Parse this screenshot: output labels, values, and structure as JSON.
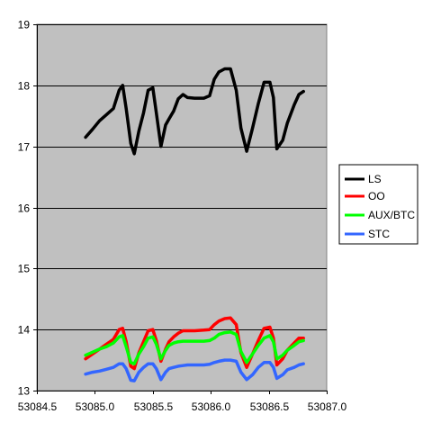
{
  "chart_data": {
    "type": "line",
    "title": "",
    "xlabel": "",
    "ylabel": "",
    "xlim": [
      53084.5,
      53087.0
    ],
    "ylim": [
      13,
      19
    ],
    "xticks": [
      53084.5,
      53085.0,
      53085.5,
      53086.0,
      53086.5,
      53087.0
    ],
    "xtick_labels": [
      "53084.5",
      "53085.0",
      "53085.5",
      "53086.0",
      "53086.5",
      "53087.0"
    ],
    "yticks": [
      13,
      14,
      15,
      16,
      17,
      18,
      19
    ],
    "ytick_labels": [
      "13",
      "14",
      "15",
      "16",
      "17",
      "18",
      "19"
    ],
    "grid": "horizontal",
    "plot_background": "#c0c0c0",
    "legend_position": "right",
    "series": [
      {
        "name": "LS",
        "color": "#000000",
        "x": [
          53084.92,
          53084.98,
          53085.04,
          53085.1,
          53085.16,
          53085.21,
          53085.24,
          53085.27,
          53085.31,
          53085.34,
          53085.38,
          53085.42,
          53085.46,
          53085.5,
          53085.53,
          53085.57,
          53085.61,
          53085.64,
          53085.68,
          53085.72,
          53085.76,
          53085.8,
          53085.86,
          53085.94,
          53085.99,
          53086.03,
          53086.07,
          53086.12,
          53086.17,
          53086.22,
          53086.26,
          53086.31,
          53086.36,
          53086.41,
          53086.46,
          53086.51,
          53086.54,
          53086.57,
          53086.62,
          53086.66,
          53086.72,
          53086.76,
          53086.8
        ],
        "values": [
          17.15,
          17.28,
          17.42,
          17.52,
          17.62,
          17.92,
          18.0,
          17.62,
          17.05,
          16.88,
          17.25,
          17.55,
          17.92,
          17.96,
          17.55,
          17.0,
          17.35,
          17.45,
          17.58,
          17.78,
          17.85,
          17.8,
          17.79,
          17.79,
          17.83,
          18.1,
          18.22,
          18.27,
          18.27,
          17.92,
          17.3,
          16.92,
          17.3,
          17.7,
          18.05,
          18.05,
          17.8,
          16.96,
          17.1,
          17.38,
          17.68,
          17.85,
          17.9
        ]
      },
      {
        "name": "OO",
        "color": "#ff0000",
        "x": [
          53084.92,
          53084.98,
          53085.04,
          53085.1,
          53085.16,
          53085.21,
          53085.24,
          53085.27,
          53085.31,
          53085.34,
          53085.38,
          53085.42,
          53085.46,
          53085.5,
          53085.53,
          53085.57,
          53085.61,
          53085.64,
          53085.68,
          53085.72,
          53085.76,
          53085.8,
          53085.86,
          53085.94,
          53085.99,
          53086.03,
          53086.07,
          53086.12,
          53086.17,
          53086.22,
          53086.26,
          53086.31,
          53086.36,
          53086.41,
          53086.46,
          53086.51,
          53086.54,
          53086.57,
          53086.62,
          53086.66,
          53086.72,
          53086.76,
          53086.8
        ],
        "values": [
          13.52,
          13.6,
          13.68,
          13.76,
          13.84,
          14.0,
          14.02,
          13.8,
          13.4,
          13.36,
          13.62,
          13.8,
          13.98,
          14.0,
          13.82,
          13.48,
          13.68,
          13.8,
          13.88,
          13.94,
          13.98,
          13.98,
          13.98,
          13.99,
          14.0,
          14.08,
          14.14,
          14.18,
          14.19,
          14.08,
          13.62,
          13.38,
          13.6,
          13.82,
          14.02,
          14.04,
          13.86,
          13.42,
          13.52,
          13.66,
          13.78,
          13.86,
          13.86
        ]
      },
      {
        "name": "AUX/BTC",
        "color": "#00ff00",
        "x": [
          53084.92,
          53084.98,
          53085.04,
          53085.1,
          53085.16,
          53085.21,
          53085.24,
          53085.27,
          53085.31,
          53085.34,
          53085.38,
          53085.42,
          53085.46,
          53085.5,
          53085.53,
          53085.57,
          53085.61,
          53085.64,
          53085.68,
          53085.72,
          53085.76,
          53085.8,
          53085.86,
          53085.94,
          53085.99,
          53086.03,
          53086.07,
          53086.12,
          53086.17,
          53086.22,
          53086.26,
          53086.31,
          53086.36,
          53086.41,
          53086.46,
          53086.51,
          53086.54,
          53086.57,
          53086.62,
          53086.66,
          53086.72,
          53086.76,
          53086.8
        ],
        "values": [
          13.58,
          13.63,
          13.68,
          13.72,
          13.78,
          13.88,
          13.9,
          13.72,
          13.46,
          13.44,
          13.6,
          13.72,
          13.86,
          13.88,
          13.76,
          13.52,
          13.66,
          13.74,
          13.78,
          13.8,
          13.81,
          13.81,
          13.81,
          13.81,
          13.82,
          13.86,
          13.92,
          13.95,
          13.96,
          13.92,
          13.64,
          13.46,
          13.6,
          13.74,
          13.86,
          13.9,
          13.8,
          13.52,
          13.58,
          13.66,
          13.74,
          13.8,
          13.82
        ]
      },
      {
        "name": "STC",
        "color": "#3366ff",
        "x": [
          53084.92,
          53084.98,
          53085.04,
          53085.1,
          53085.16,
          53085.21,
          53085.24,
          53085.27,
          53085.31,
          53085.34,
          53085.38,
          53085.42,
          53085.46,
          53085.5,
          53085.53,
          53085.57,
          53085.61,
          53085.64,
          53085.68,
          53085.72,
          53085.76,
          53085.8,
          53085.86,
          53085.94,
          53085.99,
          53086.03,
          53086.07,
          53086.12,
          53086.17,
          53086.22,
          53086.26,
          53086.31,
          53086.36,
          53086.41,
          53086.46,
          53086.51,
          53086.54,
          53086.57,
          53086.62,
          53086.66,
          53086.72,
          53086.76,
          53086.8
        ],
        "values": [
          13.27,
          13.3,
          13.32,
          13.35,
          13.38,
          13.44,
          13.44,
          13.36,
          13.17,
          13.16,
          13.3,
          13.38,
          13.44,
          13.44,
          13.36,
          13.18,
          13.3,
          13.36,
          13.38,
          13.4,
          13.41,
          13.42,
          13.42,
          13.42,
          13.43,
          13.46,
          13.48,
          13.5,
          13.5,
          13.48,
          13.3,
          13.18,
          13.26,
          13.38,
          13.46,
          13.46,
          13.38,
          13.2,
          13.26,
          13.34,
          13.38,
          13.42,
          13.44
        ]
      }
    ]
  }
}
